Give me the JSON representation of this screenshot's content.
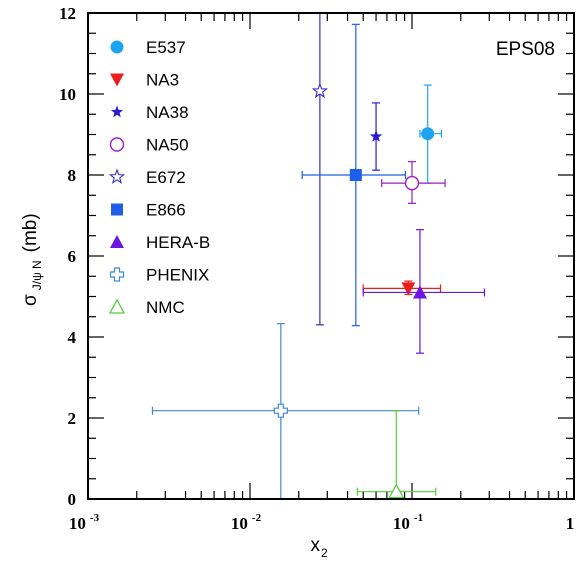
{
  "chart_data": {
    "type": "scatter",
    "annotation": "EPS08",
    "xlabel": "x",
    "xlabel_sub": "2",
    "ylabel": "σ",
    "ylabel_sub": "J/ψ N",
    "ylabel_unit": "(mb)",
    "x_scale": "log",
    "xlim": [
      0.001,
      1
    ],
    "ylim": [
      0,
      12
    ],
    "x_ticks": [
      {
        "base": "10",
        "exp": "-3",
        "value": 0.001
      },
      {
        "base": "10",
        "exp": "-2",
        "value": 0.01
      },
      {
        "base": "10",
        "exp": "-1",
        "value": 0.1
      },
      {
        "base": "1",
        "exp": "",
        "value": 1
      }
    ],
    "y_ticks": [
      "0",
      "2",
      "4",
      "6",
      "8",
      "10",
      "12"
    ],
    "legend_position": "top-left",
    "series": [
      {
        "name": "E537",
        "marker": "circle-filled",
        "color": "#1ea3f0",
        "points": [
          {
            "x": 0.125,
            "y": 9.02,
            "xerr": [
              0.112,
              0.152
            ],
            "yerr": [
              7.8,
              10.22
            ]
          }
        ]
      },
      {
        "name": "NA3",
        "marker": "triangle-down-filled",
        "color": "#ee1c1c",
        "points": [
          {
            "x": 0.095,
            "y": 5.2,
            "xerr": [
              0.05,
              0.15
            ],
            "yerr": [
              5.05,
              5.38
            ]
          }
        ]
      },
      {
        "name": "NA38",
        "marker": "star-filled",
        "color": "#2a1ad6",
        "points": [
          {
            "x": 0.06,
            "y": 8.95,
            "xerr": [
              0.06,
              0.06
            ],
            "yerr": [
              8.12,
              9.78
            ]
          }
        ]
      },
      {
        "name": "NA50",
        "marker": "circle-open",
        "color": "#9b1fc4",
        "points": [
          {
            "x": 0.1,
            "y": 7.8,
            "xerr": [
              0.065,
              0.16
            ],
            "yerr": [
              7.3,
              8.33
            ]
          }
        ]
      },
      {
        "name": "E672",
        "marker": "star-open",
        "color": "#3a2fbf",
        "points": [
          {
            "x": 0.027,
            "y": 10.07,
            "xerr": [
              0.027,
              0.027
            ],
            "yerr": [
              4.3,
              12.0
            ]
          }
        ]
      },
      {
        "name": "E866",
        "marker": "square-filled",
        "color": "#1f5ee8",
        "points": [
          {
            "x": 0.045,
            "y": 8.0,
            "xerr": [
              0.021,
              0.091
            ],
            "yerr": [
              4.28,
              11.72
            ]
          }
        ]
      },
      {
        "name": "HERA-B",
        "marker": "triangle-up-filled",
        "color": "#6a16e0",
        "points": [
          {
            "x": 0.112,
            "y": 5.1,
            "xerr": [
              0.05,
              0.28
            ],
            "yerr": [
              3.6,
              6.65
            ]
          }
        ]
      },
      {
        "name": "PHENIX",
        "marker": "cross-open",
        "color": "#3f86d8",
        "points": [
          {
            "x": 0.0155,
            "y": 2.18,
            "xerr": [
              0.0025,
              0.11
            ],
            "yerr": [
              0.0,
              4.33
            ]
          }
        ]
      },
      {
        "name": "NMC",
        "marker": "triangle-up-open",
        "color": "#52d13a",
        "points": [
          {
            "x": 0.08,
            "y": 0.18,
            "xerr": [
              0.046,
              0.14
            ],
            "yerr": [
              0.0,
              2.18
            ]
          }
        ]
      }
    ]
  }
}
